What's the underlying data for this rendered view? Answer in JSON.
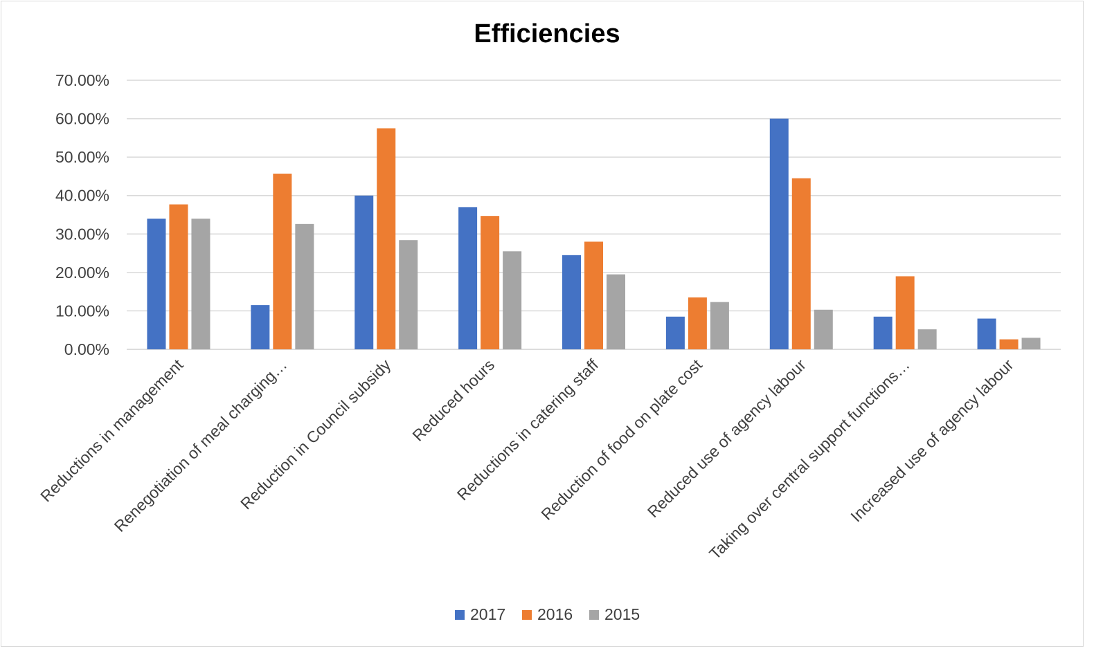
{
  "chart_data": {
    "type": "bar",
    "title": "Efficiencies",
    "xlabel": "",
    "ylabel": "",
    "ylim": [
      0,
      0.7
    ],
    "yticks": [
      0,
      0.1,
      0.2,
      0.3,
      0.4,
      0.5,
      0.6,
      0.7
    ],
    "ytick_labels": [
      "0.00%",
      "10.00%",
      "20.00%",
      "30.00%",
      "40.00%",
      "50.00%",
      "60.00%",
      "70.00%"
    ],
    "grid": true,
    "legend_position": "bottom",
    "categories": [
      "Reductions in management",
      "Renegotiation of meal charging…",
      "Reduction in Council subsidy",
      "Reduced hours",
      "Reductions in catering staff",
      "Reduction of food on plate cost",
      "Reduced use of agency labour",
      "Taking over central support functions…",
      "Increased use of agency labour"
    ],
    "series": [
      {
        "name": "2017",
        "color": "#4472C4",
        "values": [
          0.34,
          0.115,
          0.4,
          0.37,
          0.245,
          0.085,
          0.6,
          0.085,
          0.08
        ]
      },
      {
        "name": "2016",
        "color": "#ED7D31",
        "values": [
          0.377,
          0.457,
          0.575,
          0.347,
          0.28,
          0.135,
          0.445,
          0.19,
          0.026
        ]
      },
      {
        "name": "2015",
        "color": "#A5A5A5",
        "values": [
          0.34,
          0.326,
          0.284,
          0.255,
          0.195,
          0.123,
          0.103,
          0.052,
          0.03
        ]
      }
    ]
  }
}
